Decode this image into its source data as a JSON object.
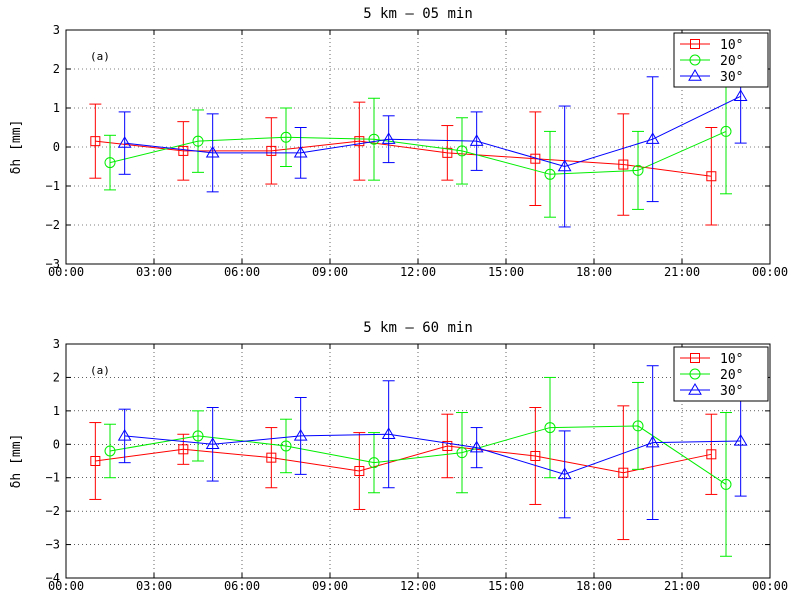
{
  "chart_data": [
    {
      "type": "line",
      "title": "5 km – 05 min",
      "ylabel": "δh  [mm]",
      "panel_label": "(a)",
      "xlim": [
        "00:00",
        "24:00"
      ],
      "ylim": [
        -3,
        3
      ],
      "yticks": [
        "−3",
        "−2",
        "−1",
        "0",
        "1",
        "2",
        "3"
      ],
      "xticks": [
        "00:00",
        "03:00",
        "06:00",
        "09:00",
        "12:00",
        "15:00",
        "18:00",
        "21:00",
        "00:00"
      ],
      "grid": true,
      "legend": "top-right",
      "series": [
        {
          "name": "10°",
          "color": "#ff0000",
          "marker": "square",
          "x": [
            "01:00",
            "04:00",
            "07:00",
            "10:00",
            "13:00",
            "16:00",
            "19:00",
            "22:00"
          ],
          "y": [
            0.15,
            -0.1,
            -0.1,
            0.15,
            -0.15,
            -0.3,
            -0.45,
            -0.75
          ],
          "err": [
            0.95,
            0.75,
            0.85,
            1.0,
            0.7,
            1.2,
            1.3,
            1.25
          ]
        },
        {
          "name": "20°",
          "color": "#00ee00",
          "marker": "circle",
          "x": [
            "01:30",
            "04:30",
            "07:30",
            "10:30",
            "13:30",
            "16:30",
            "19:30",
            "22:30"
          ],
          "y": [
            -0.4,
            0.15,
            0.25,
            0.2,
            -0.1,
            -0.7,
            -0.6,
            0.4
          ],
          "err": [
            0.7,
            0.8,
            0.75,
            1.05,
            0.85,
            1.1,
            1.0,
            1.6
          ]
        },
        {
          "name": "30°",
          "color": "#0000ff",
          "marker": "triangle",
          "x": [
            "02:00",
            "05:00",
            "08:00",
            "11:00",
            "14:00",
            "17:00",
            "20:00",
            "23:00"
          ],
          "y": [
            0.1,
            -0.15,
            -0.15,
            0.2,
            0.15,
            -0.5,
            0.2,
            1.3
          ],
          "err": [
            0.8,
            1.0,
            0.65,
            0.6,
            0.75,
            1.55,
            1.6,
            1.2
          ]
        }
      ]
    },
    {
      "type": "line",
      "title": "5 km – 60 min",
      "ylabel": "δh  [mm]",
      "panel_label": "(a)",
      "xlim": [
        "00:00",
        "24:00"
      ],
      "ylim": [
        -4,
        3
      ],
      "yticks": [
        "−4",
        "−3",
        "−2",
        "−1",
        "0",
        "1",
        "2",
        "3"
      ],
      "xticks": [
        "00:00",
        "03:00",
        "06:00",
        "09:00",
        "12:00",
        "15:00",
        "18:00",
        "21:00",
        "00:00"
      ],
      "grid": true,
      "legend": "top-right",
      "series": [
        {
          "name": "10°",
          "color": "#ff0000",
          "marker": "square",
          "x": [
            "01:00",
            "04:00",
            "07:00",
            "10:00",
            "13:00",
            "16:00",
            "19:00",
            "22:00"
          ],
          "y": [
            -0.5,
            -0.15,
            -0.4,
            -0.8,
            -0.05,
            -0.35,
            -0.85,
            -0.3
          ],
          "err": [
            1.15,
            0.45,
            0.9,
            1.15,
            0.95,
            1.45,
            2.0,
            1.2
          ]
        },
        {
          "name": "20°",
          "color": "#00ee00",
          "marker": "circle",
          "x": [
            "01:30",
            "04:30",
            "07:30",
            "10:30",
            "13:30",
            "16:30",
            "19:30",
            "22:30"
          ],
          "y": [
            -0.2,
            0.25,
            -0.05,
            -0.55,
            -0.25,
            0.5,
            0.55,
            -1.2
          ],
          "err": [
            0.8,
            0.75,
            0.8,
            0.9,
            1.2,
            1.5,
            1.3,
            2.15
          ]
        },
        {
          "name": "30°",
          "color": "#0000ff",
          "marker": "triangle",
          "x": [
            "02:00",
            "05:00",
            "08:00",
            "11:00",
            "14:00",
            "17:00",
            "20:00",
            "23:00"
          ],
          "y": [
            0.25,
            0.0,
            0.25,
            0.3,
            -0.1,
            -0.9,
            0.05,
            0.1
          ],
          "err": [
            0.8,
            1.1,
            1.15,
            1.6,
            0.6,
            1.3,
            2.3,
            1.65
          ]
        }
      ]
    }
  ]
}
